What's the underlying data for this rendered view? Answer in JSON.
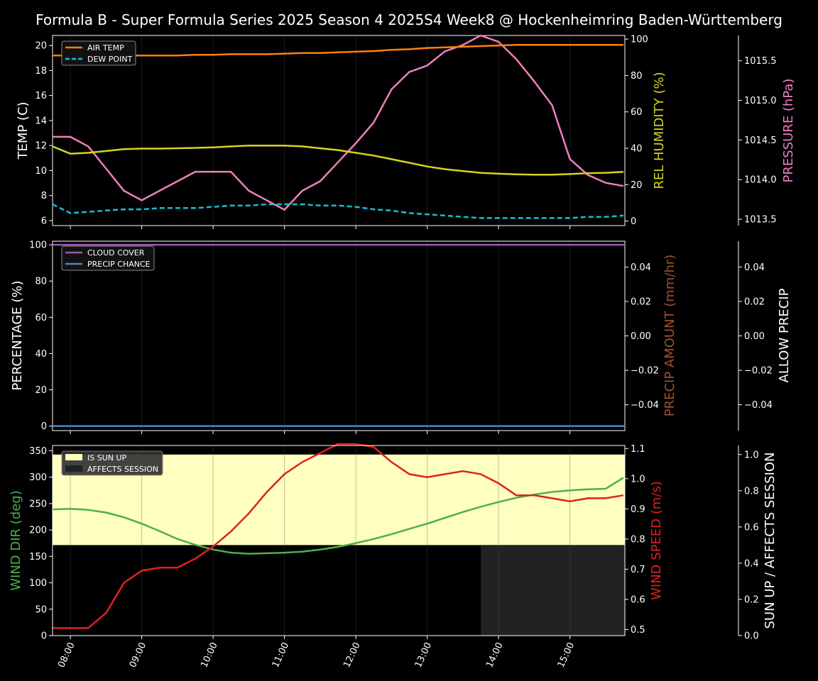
{
  "title": "Formula B - Super Formula Series 2025 Season 4 2025S4 Week8 @ Hockenheimring Baden-Württemberg",
  "colors": {
    "air_temp": "#ff7f0e",
    "dew_point": "#17becf",
    "humidity": "#d4d422",
    "pressure": "#f07fbd",
    "cloud": "#9b59b6",
    "precip_chance": "#4a86c8",
    "precip_amount": "#a0522d",
    "wind_dir": "#4caf50",
    "wind_speed": "#e02020",
    "sun_up": "#ffffc0",
    "affects": "#222222"
  },
  "chart_data": [
    {
      "type": "line",
      "panel": "weather",
      "x_hours": [
        7.75,
        8.0,
        8.25,
        8.5,
        8.75,
        9.0,
        9.25,
        9.5,
        9.75,
        10.0,
        10.25,
        10.5,
        10.75,
        11.0,
        11.25,
        11.5,
        11.75,
        12.0,
        12.25,
        12.5,
        12.75,
        13.0,
        13.25,
        13.5,
        13.75,
        14.0,
        14.25,
        14.5,
        14.75,
        15.0,
        15.25,
        15.5,
        15.75
      ],
      "xlim": [
        7.75,
        15.77
      ],
      "xticks": [
        "08:00",
        "09:00",
        "10:00",
        "11:00",
        "12:00",
        "13:00",
        "14:00",
        "15:00"
      ],
      "left_axis": {
        "label": "TEMP (C)",
        "ylim": [
          5.6,
          20.8
        ],
        "ticks": [
          "6",
          "8",
          "10",
          "12",
          "14",
          "16",
          "18",
          "20"
        ]
      },
      "right_axis": {
        "label": "REL HUMIDITY (%)",
        "ylim": [
          -2.5,
          102
        ],
        "ticks": [
          "0",
          "20",
          "40",
          "60",
          "80",
          "100"
        ]
      },
      "far_right_axis": {
        "label": "PRESSURE (hPa)",
        "ylim": [
          13.42,
          15.82
        ],
        "ticks": [
          "1013.5",
          "1014.0",
          "1014.5",
          "1015.0",
          "1015.5"
        ]
      },
      "legend": [
        "AIR TEMP",
        "DEW POINT"
      ],
      "legend_location": "upper-left",
      "series": [
        {
          "name": "AIR TEMP",
          "axis": "left",
          "values": [
            19.2,
            19.2,
            19.2,
            19.2,
            19.2,
            19.2,
            19.2,
            19.2,
            19.25,
            19.25,
            19.3,
            19.3,
            19.3,
            19.35,
            19.4,
            19.4,
            19.45,
            19.5,
            19.55,
            19.65,
            19.7,
            19.8,
            19.85,
            19.9,
            19.95,
            20.0,
            20.05,
            20.05,
            20.05,
            20.05,
            20.05,
            20.05,
            20.05
          ]
        },
        {
          "name": "DEW POINT",
          "axis": "left",
          "values": [
            7.3,
            6.6,
            6.7,
            6.8,
            6.9,
            6.9,
            7.0,
            7.0,
            7.0,
            7.1,
            7.2,
            7.2,
            7.3,
            7.3,
            7.3,
            7.2,
            7.2,
            7.1,
            6.9,
            6.8,
            6.6,
            6.5,
            6.4,
            6.3,
            6.2,
            6.2,
            6.2,
            6.2,
            6.2,
            6.2,
            6.3,
            6.3,
            6.4
          ]
        },
        {
          "name": "REL HUMIDITY",
          "axis": "right",
          "values": [
            41,
            37,
            37.5,
            38.5,
            39.5,
            39.8,
            39.8,
            40.0,
            40.2,
            40.5,
            41,
            41.5,
            41.5,
            41.5,
            41,
            40,
            39,
            37.5,
            36,
            34,
            32,
            30,
            28.5,
            27.5,
            26.5,
            26,
            25.7,
            25.5,
            25.5,
            25.8,
            26.3,
            26.5,
            27
          ]
        },
        {
          "name": "PRESSURE",
          "axis": "far_right",
          "values": [
            14.54,
            14.54,
            14.42,
            14.14,
            13.86,
            13.74,
            13.86,
            13.98,
            14.1,
            14.1,
            14.1,
            13.86,
            13.74,
            13.62,
            13.86,
            13.98,
            14.22,
            14.46,
            14.72,
            15.14,
            15.36,
            15.44,
            15.62,
            15.7,
            15.82,
            15.74,
            15.52,
            15.24,
            14.94,
            14.26,
            14.06,
            13.96,
            13.92
          ]
        }
      ]
    },
    {
      "type": "line",
      "panel": "precipitation",
      "left_axis": {
        "label": "PERCENTAGE (%)",
        "ylim": [
          -2.5,
          102
        ],
        "ticks": [
          "0",
          "20",
          "40",
          "60",
          "80",
          "100"
        ]
      },
      "right_axis": {
        "label": "PRECIP AMOUNT (mm/hr)",
        "ylim": [
          -0.055,
          0.055
        ],
        "ticks": [
          "−0.04",
          "−0.02",
          "0.00",
          "0.02",
          "0.04"
        ]
      },
      "far_right_axis": {
        "label": "ALLOW PRECIP",
        "ylim": [
          -0.055,
          0.055
        ],
        "ticks": [
          "−0.04",
          "−0.02",
          "0.00",
          "0.02",
          "0.04"
        ]
      },
      "legend": [
        "CLOUD COVER",
        "PRECIP CHANCE"
      ],
      "legend_location": "upper-left",
      "series": [
        {
          "name": "CLOUD COVER",
          "axis": "left",
          "constant": 100
        },
        {
          "name": "PRECIP CHANCE",
          "axis": "left",
          "constant": 0
        }
      ]
    },
    {
      "type": "line",
      "panel": "wind",
      "x_hours": [
        7.75,
        8.0,
        8.25,
        8.5,
        8.75,
        9.0,
        9.25,
        9.5,
        9.75,
        10.0,
        10.25,
        10.5,
        10.75,
        11.0,
        11.25,
        11.5,
        11.75,
        12.0,
        12.25,
        12.5,
        12.75,
        13.0,
        13.25,
        13.5,
        13.75,
        14.0,
        14.25,
        14.5,
        14.75,
        15.0,
        15.25,
        15.5,
        15.75
      ],
      "left_axis": {
        "label": "WIND DIR (deg)",
        "ylim": [
          0,
          360
        ],
        "ticks": [
          "0",
          "50",
          "100",
          "150",
          "200",
          "250",
          "300",
          "350"
        ]
      },
      "right_axis": {
        "label": "WIND SPEED (m/s)",
        "ylim": [
          0.48,
          1.11
        ],
        "ticks": [
          "0.5",
          "0.6",
          "0.7",
          "0.8",
          "0.9",
          "1.0",
          "1.1"
        ]
      },
      "far_right_axis": {
        "label": "SUN UP / AFFECTS SESSION",
        "ylim": [
          0,
          1.05
        ],
        "ticks": [
          "0.0",
          "0.2",
          "0.4",
          "0.6",
          "0.8",
          "1.0"
        ]
      },
      "legend": [
        "IS SUN UP",
        "AFFECTS SESSION"
      ],
      "legend_location": "upper-left",
      "sun_up": {
        "value": 1,
        "from": 7.75,
        "to": 15.77
      },
      "affects_session": {
        "value": 0.5,
        "from": 13.75,
        "to": 15.77
      },
      "series": [
        {
          "name": "WIND DIR",
          "axis": "left",
          "values": [
            239,
            240,
            238,
            233,
            224,
            212,
            198,
            183,
            172,
            163,
            157,
            155,
            156,
            157,
            159,
            163,
            168,
            175,
            183,
            192,
            202,
            212,
            223,
            234,
            244,
            253,
            261,
            267,
            272,
            275,
            277,
            278,
            299
          ]
        },
        {
          "name": "WIND SPEED",
          "axis": "right",
          "values": [
            0.505,
            0.505,
            0.505,
            0.555,
            0.655,
            0.695,
            0.705,
            0.705,
            0.735,
            0.775,
            0.825,
            0.885,
            0.955,
            1.015,
            1.055,
            1.085,
            1.115,
            1.115,
            1.105,
            1.055,
            1.015,
            1.005,
            1.015,
            1.025,
            1.015,
            0.985,
            0.945,
            0.945,
            0.935,
            0.925,
            0.935,
            0.935,
            0.945
          ]
        }
      ]
    }
  ]
}
